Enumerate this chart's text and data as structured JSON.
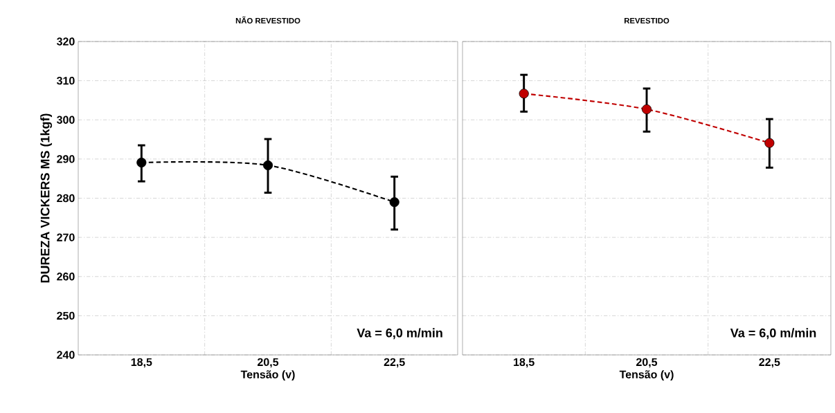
{
  "chart_data": [
    {
      "type": "line",
      "title": "NÃO REVESTIDO",
      "xlabel": "Tensão (v)",
      "ylabel": "DUREZA VICKERS MS (1kgf)",
      "categories": [
        "18,5",
        "20,5",
        "22,5"
      ],
      "series": [
        {
          "color": "#000000",
          "values": [
            289.1,
            288.4,
            279.0
          ],
          "errors": [
            [
              284.3,
              293.5
            ],
            [
              281.4,
              295.1
            ],
            [
              272.0,
              285.5
            ]
          ]
        }
      ],
      "ylim": [
        240,
        320
      ],
      "yticks": [
        240,
        250,
        260,
        270,
        280,
        290,
        300,
        310,
        320
      ],
      "grid": true,
      "marker": "circle",
      "line_style": "dashed",
      "annotations": [
        "Va = 6,0 m/min"
      ]
    },
    {
      "type": "line",
      "title": "REVESTIDO",
      "xlabel": "Tensão (v)",
      "categories": [
        "18,5",
        "20,5",
        "22,5"
      ],
      "series": [
        {
          "color": "#c00000",
          "values": [
            306.7,
            302.7,
            294.1
          ],
          "errors": [
            [
              302.1,
              311.5
            ],
            [
              297.0,
              308.0
            ],
            [
              287.8,
              300.2
            ]
          ]
        }
      ],
      "ylim": [
        240,
        320
      ],
      "yticks": [
        240,
        250,
        260,
        270,
        280,
        290,
        300,
        310,
        320
      ],
      "tick_labels": "x",
      "grid": true,
      "marker": "circle",
      "line_style": "dashed",
      "annotations": [
        "Va = 6,0 m/min"
      ]
    }
  ]
}
